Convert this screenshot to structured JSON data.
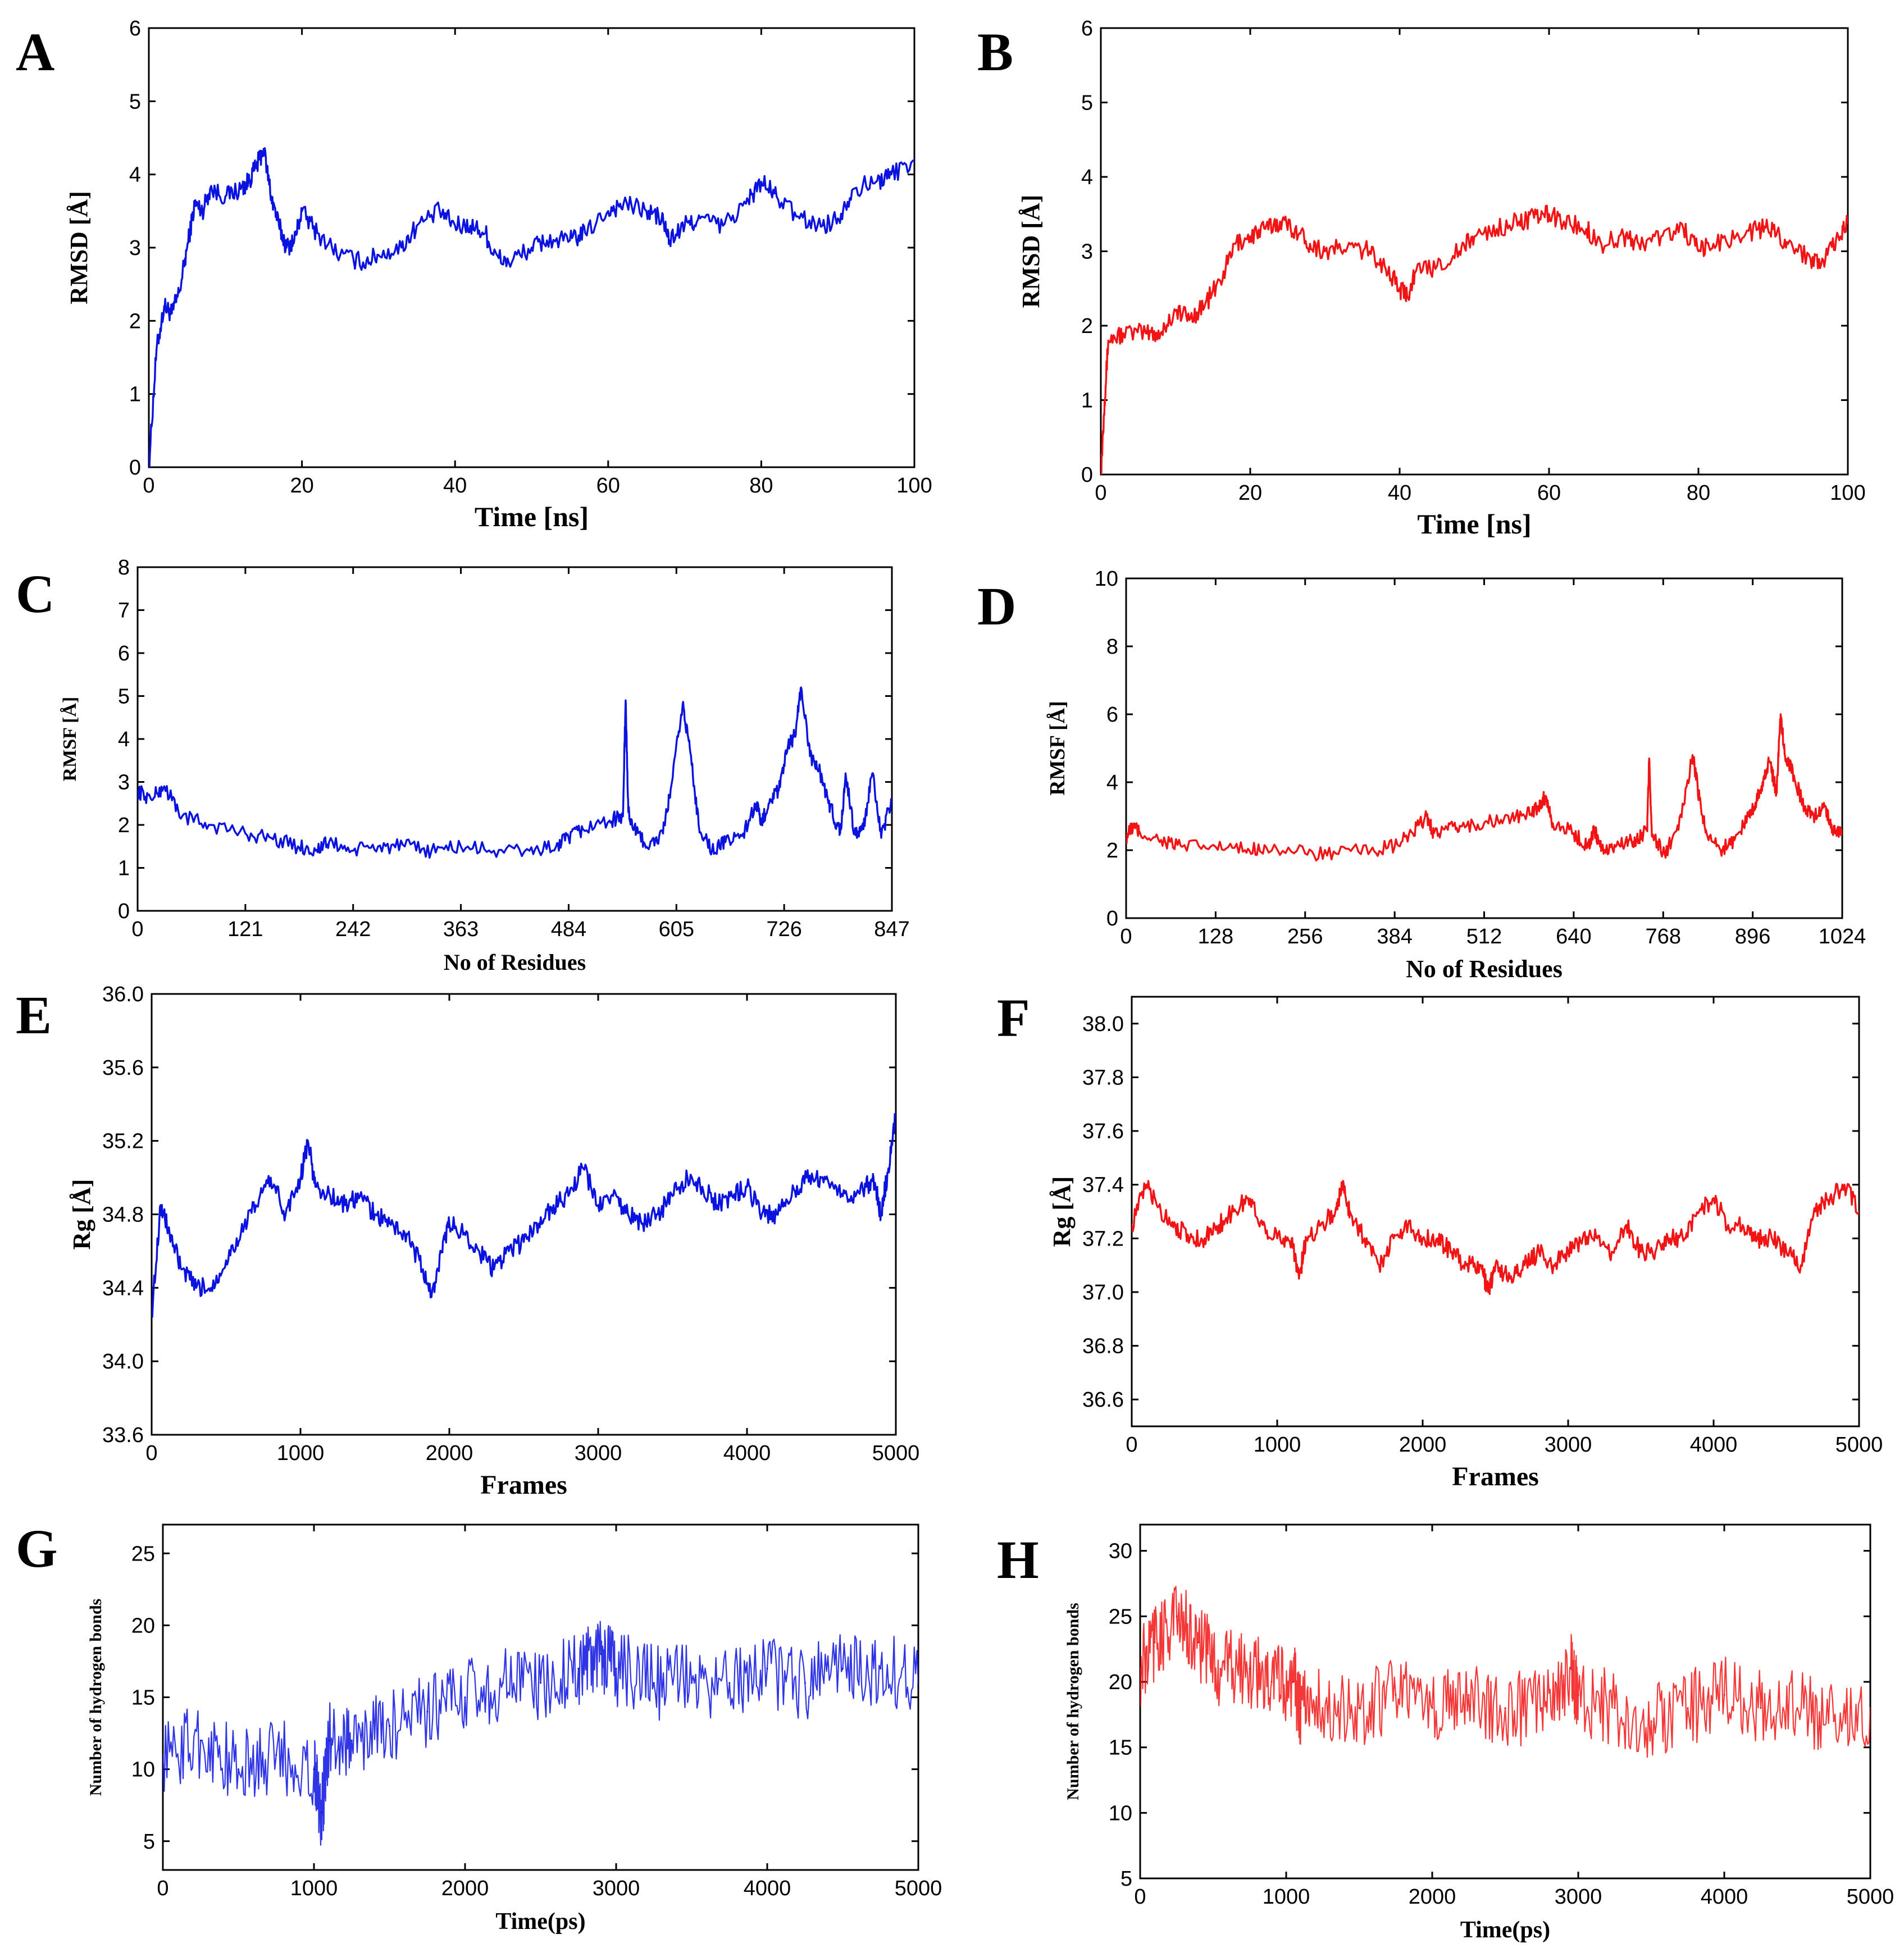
{
  "figure": {
    "colors": {
      "blue": "#0a12e0",
      "red": "#f21414",
      "axis": "#000000"
    }
  },
  "chart_data": [
    {
      "panel": "A",
      "type": "line",
      "color": "#0a12e0",
      "xlabel": "Time [ns]",
      "ylabel": "RMSD [Å]",
      "xlim": [
        0,
        100
      ],
      "ylim": [
        0,
        6
      ],
      "xticks": [
        0,
        20,
        40,
        60,
        80,
        100
      ],
      "yticks": [
        0,
        1,
        2,
        3,
        4,
        5,
        6
      ],
      "series": [
        {
          "name": "RMSD",
          "x": [
            0,
            1,
            2,
            3,
            4,
            5,
            6,
            7,
            8,
            10,
            12,
            13,
            14,
            15,
            16,
            17,
            18,
            19,
            20,
            22,
            25,
            28,
            30,
            33,
            35,
            38,
            40,
            42,
            44,
            45,
            47,
            50,
            52,
            55,
            57,
            60,
            62,
            65,
            67,
            68,
            70,
            72,
            75,
            78,
            80,
            82,
            85,
            88,
            90,
            92,
            95,
            97,
            100
          ],
          "y": [
            0,
            1.6,
            2.2,
            2.1,
            2.4,
            3.0,
            3.6,
            3.5,
            3.8,
            3.7,
            3.8,
            3.9,
            4.1,
            4.35,
            3.7,
            3.3,
            3.0,
            3.1,
            3.5,
            3.2,
            2.9,
            2.8,
            2.9,
            3.0,
            3.3,
            3.5,
            3.3,
            3.3,
            3.2,
            2.9,
            2.8,
            3.0,
            3.1,
            3.1,
            3.2,
            3.5,
            3.6,
            3.5,
            3.4,
            3.1,
            3.3,
            3.4,
            3.3,
            3.6,
            3.9,
            3.7,
            3.4,
            3.3,
            3.4,
            3.8,
            3.9,
            4.0,
            4.2
          ]
        }
      ]
    },
    {
      "panel": "B",
      "type": "line",
      "color": "#f21414",
      "xlabel": "Time [ns]",
      "ylabel": "RMSD [Å]",
      "xlim": [
        0,
        100
      ],
      "ylim": [
        0,
        6
      ],
      "xticks": [
        0,
        20,
        40,
        60,
        80,
        100
      ],
      "yticks": [
        0,
        1,
        2,
        3,
        4,
        5,
        6
      ],
      "series": [
        {
          "name": "RMSD",
          "x": [
            0,
            0.5,
            1,
            3,
            6,
            8,
            10,
            12,
            14,
            16,
            18,
            20,
            22,
            24,
            26,
            28,
            30,
            33,
            36,
            38,
            40,
            41,
            42,
            45,
            48,
            50,
            53,
            56,
            58,
            60,
            62,
            65,
            67,
            70,
            72,
            75,
            78,
            80,
            82,
            85,
            88,
            90,
            92,
            95,
            97,
            99,
            100
          ],
          "y": [
            0,
            1.0,
            1.8,
            1.9,
            1.9,
            1.9,
            2.2,
            2.1,
            2.3,
            2.6,
            3.1,
            3.2,
            3.3,
            3.4,
            3.3,
            3.1,
            3.0,
            3.05,
            3.0,
            2.8,
            2.5,
            2.4,
            2.7,
            2.8,
            3.0,
            3.2,
            3.3,
            3.4,
            3.45,
            3.5,
            3.4,
            3.3,
            3.1,
            3.2,
            3.1,
            3.2,
            3.3,
            3.0,
            3.1,
            3.2,
            3.3,
            3.3,
            3.1,
            2.9,
            2.9,
            3.2,
            3.4
          ]
        }
      ]
    },
    {
      "panel": "C",
      "type": "line",
      "color": "#0a12e0",
      "xlabel": "No of Residues",
      "ylabel": "RMSF [Å]",
      "xlim": [
        0,
        847
      ],
      "ylim": [
        0,
        8
      ],
      "xticks": [
        0,
        121,
        242,
        363,
        484,
        605,
        726,
        847
      ],
      "yticks": [
        0,
        1,
        2,
        3,
        4,
        5,
        6,
        7,
        8
      ],
      "series": [
        {
          "name": "RMSF",
          "x": [
            0,
            15,
            30,
            50,
            80,
            121,
            150,
            180,
            200,
            215,
            242,
            270,
            300,
            330,
            363,
            400,
            440,
            470,
            484,
            500,
            530,
            545,
            548,
            551,
            560,
            575,
            590,
            600,
            612,
            620,
            630,
            645,
            660,
            680,
            695,
            700,
            710,
            720,
            730,
            738,
            745,
            755,
            765,
            775,
            785,
            790,
            795,
            805,
            815,
            825,
            835,
            847
          ],
          "y": [
            2.8,
            2.6,
            2.9,
            2.2,
            2.0,
            1.8,
            1.7,
            1.5,
            1.4,
            1.6,
            1.4,
            1.5,
            1.5,
            1.4,
            1.5,
            1.4,
            1.4,
            1.5,
            1.7,
            1.9,
            2.1,
            2.2,
            4.9,
            2.3,
            1.8,
            1.5,
            1.8,
            3.0,
            4.8,
            3.8,
            2.0,
            1.4,
            1.6,
            1.8,
            2.5,
            2.0,
            2.6,
            2.8,
            3.8,
            4.1,
            5.2,
            3.6,
            3.3,
            2.6,
            2.0,
            1.9,
            3.2,
            1.8,
            1.9,
            3.2,
            1.7,
            2.6
          ]
        }
      ]
    },
    {
      "panel": "D",
      "type": "line",
      "color": "#f21414",
      "xlabel": "No of Residues",
      "ylabel": "RMSF [Å]",
      "xlim": [
        0,
        1024
      ],
      "ylim": [
        0,
        10
      ],
      "xticks": [
        0,
        128,
        256,
        384,
        512,
        640,
        768,
        896,
        1024
      ],
      "yticks": [
        0,
        2,
        4,
        6,
        8,
        10
      ],
      "series": [
        {
          "name": "RMSF",
          "x": [
            0,
            10,
            20,
            50,
            80,
            128,
            170,
            200,
            256,
            300,
            350,
            384,
            410,
            430,
            440,
            460,
            480,
            512,
            540,
            570,
            590,
            600,
            610,
            640,
            660,
            670,
            680,
            700,
            720,
            730,
            745,
            748,
            752,
            770,
            790,
            810,
            820,
            830,
            850,
            870,
            890,
            900,
            910,
            920,
            930,
            936,
            942,
            955,
            970,
            985,
            1000,
            1010,
            1024
          ],
          "y": [
            2.4,
            2.7,
            2.5,
            2.3,
            2.1,
            2.1,
            2.0,
            2.1,
            1.9,
            1.9,
            2.0,
            2.1,
            2.5,
            3.0,
            2.5,
            2.6,
            2.7,
            2.8,
            2.9,
            3.0,
            3.3,
            3.6,
            2.8,
            2.5,
            2.1,
            2.6,
            2.0,
            2.1,
            2.3,
            2.3,
            2.6,
            4.7,
            2.4,
            1.9,
            2.6,
            4.8,
            3.5,
            2.5,
            2.0,
            2.3,
            3.0,
            3.4,
            4.0,
            4.6,
            3.7,
            6.0,
            4.8,
            4.2,
            3.2,
            3.0,
            3.3,
            2.6,
            2.6
          ]
        }
      ]
    },
    {
      "panel": "E",
      "type": "line",
      "color": "#0a12e0",
      "xlabel": "Frames",
      "ylabel": "Rg [Å]",
      "xlim": [
        0,
        5000
      ],
      "ylim": [
        33.6,
        36.0
      ],
      "xticks": [
        0,
        1000,
        2000,
        3000,
        4000,
        5000
      ],
      "yticks": [
        33.6,
        34.0,
        34.4,
        34.8,
        35.2,
        35.6,
        36.0
      ],
      "series": [
        {
          "name": "Rg",
          "x": [
            0,
            60,
            120,
            200,
            300,
            400,
            500,
            600,
            700,
            800,
            900,
            1000,
            1050,
            1100,
            1200,
            1300,
            1400,
            1500,
            1600,
            1700,
            1800,
            1880,
            1950,
            2000,
            2100,
            2200,
            2300,
            2400,
            2500,
            2600,
            2700,
            2800,
            2900,
            3000,
            3100,
            3200,
            3300,
            3400,
            3500,
            3600,
            3700,
            3800,
            3900,
            4000,
            4100,
            4200,
            4300,
            4400,
            4500,
            4600,
            4700,
            4800,
            4850,
            4900,
            4950,
            5000
          ],
          "y": [
            34.25,
            34.85,
            34.7,
            34.5,
            34.4,
            34.4,
            34.55,
            34.7,
            34.85,
            35.0,
            34.8,
            35.0,
            35.2,
            34.95,
            34.9,
            34.85,
            34.9,
            34.8,
            34.75,
            34.7,
            34.55,
            34.35,
            34.6,
            34.75,
            34.7,
            34.6,
            34.5,
            34.6,
            34.65,
            34.75,
            34.85,
            34.9,
            35.05,
            34.85,
            34.9,
            34.8,
            34.75,
            34.8,
            34.9,
            35.0,
            34.95,
            34.85,
            34.9,
            34.95,
            34.8,
            34.8,
            34.9,
            35.0,
            35.0,
            34.95,
            34.9,
            34.95,
            35.0,
            34.8,
            35.05,
            35.35
          ]
        }
      ]
    },
    {
      "panel": "F",
      "type": "line",
      "color": "#f21414",
      "xlabel": "Frames",
      "ylabel": "Rg [Å]",
      "xlim": [
        0,
        5000
      ],
      "ylim": [
        36.5,
        38.1
      ],
      "xticks": [
        0,
        1000,
        2000,
        3000,
        4000,
        5000
      ],
      "yticks": [
        36.6,
        36.8,
        37.0,
        37.2,
        37.4,
        37.6,
        37.8,
        38.0
      ],
      "series": [
        {
          "name": "Rg",
          "x": [
            0,
            100,
            200,
            300,
            400,
            500,
            600,
            700,
            800,
            900,
            1000,
            1100,
            1150,
            1200,
            1300,
            1400,
            1450,
            1500,
            1600,
            1700,
            1800,
            1900,
            2000,
            2100,
            2200,
            2300,
            2400,
            2450,
            2500,
            2600,
            2700,
            2800,
            2900,
            3000,
            3100,
            3200,
            3300,
            3400,
            3500,
            3600,
            3700,
            3800,
            3900,
            4000,
            4100,
            4200,
            4300,
            4400,
            4500,
            4600,
            4700,
            4800,
            4900,
            5000
          ],
          "y": [
            37.25,
            37.4,
            37.3,
            37.25,
            37.2,
            37.2,
            37.25,
            37.3,
            37.35,
            37.25,
            37.2,
            37.2,
            37.05,
            37.2,
            37.25,
            37.3,
            37.4,
            37.3,
            37.2,
            37.1,
            37.2,
            37.25,
            37.2,
            37.2,
            37.15,
            37.1,
            37.1,
            37.0,
            37.1,
            37.05,
            37.1,
            37.15,
            37.1,
            37.15,
            37.2,
            37.2,
            37.15,
            37.25,
            37.15,
            37.15,
            37.2,
            37.2,
            37.3,
            37.35,
            37.25,
            37.25,
            37.2,
            37.2,
            37.15,
            37.1,
            37.3,
            37.35,
            37.4,
            37.3
          ]
        }
      ]
    },
    {
      "panel": "G",
      "type": "line",
      "color": "#0a12e0",
      "xlabel": "Time(ps)",
      "ylabel": "Number of hydrogen bonds",
      "xlim": [
        0,
        5000
      ],
      "ylim": [
        3,
        27
      ],
      "xticks": [
        0,
        1000,
        2000,
        3000,
        4000,
        5000
      ],
      "yticks": [
        5,
        10,
        15,
        20,
        25
      ],
      "series": [
        {
          "name": "H-bonds",
          "x": [
            0,
            250,
            500,
            750,
            1000,
            1050,
            1100,
            1250,
            1500,
            1750,
            2000,
            2250,
            2500,
            2750,
            2900,
            3000,
            3250,
            3500,
            3750,
            4000,
            4250,
            4500,
            4750,
            5000
          ],
          "y": [
            11,
            12,
            10,
            11,
            10,
            7,
            12,
            12,
            13,
            14,
            15,
            16,
            16,
            17,
            18,
            17,
            16,
            16,
            16,
            17,
            16,
            17,
            17,
            16
          ]
        }
      ]
    },
    {
      "panel": "H",
      "type": "line",
      "color": "#f21414",
      "xlabel": "Time(ps)",
      "ylabel": "Number of hydrogen bonds",
      "xlim": [
        0,
        5000
      ],
      "ylim": [
        5,
        32
      ],
      "xticks": [
        0,
        1000,
        2000,
        3000,
        4000,
        5000
      ],
      "yticks": [
        5,
        10,
        15,
        20,
        25,
        30
      ],
      "series": [
        {
          "name": "H-bonds",
          "x": [
            0,
            100,
            250,
            400,
            550,
            750,
            900,
            1050,
            1100,
            1250,
            1500,
            1750,
            2000,
            2250,
            2500,
            2750,
            2950,
            3000,
            3250,
            3500,
            3750,
            4000,
            4250,
            4500,
            4750,
            5000
          ],
          "y": [
            21,
            23,
            25,
            23,
            21,
            21,
            20,
            20,
            18,
            18,
            18,
            19,
            18,
            19,
            18,
            18,
            21,
            19,
            18,
            17,
            18,
            19,
            18,
            18,
            17,
            18
          ]
        }
      ]
    }
  ]
}
